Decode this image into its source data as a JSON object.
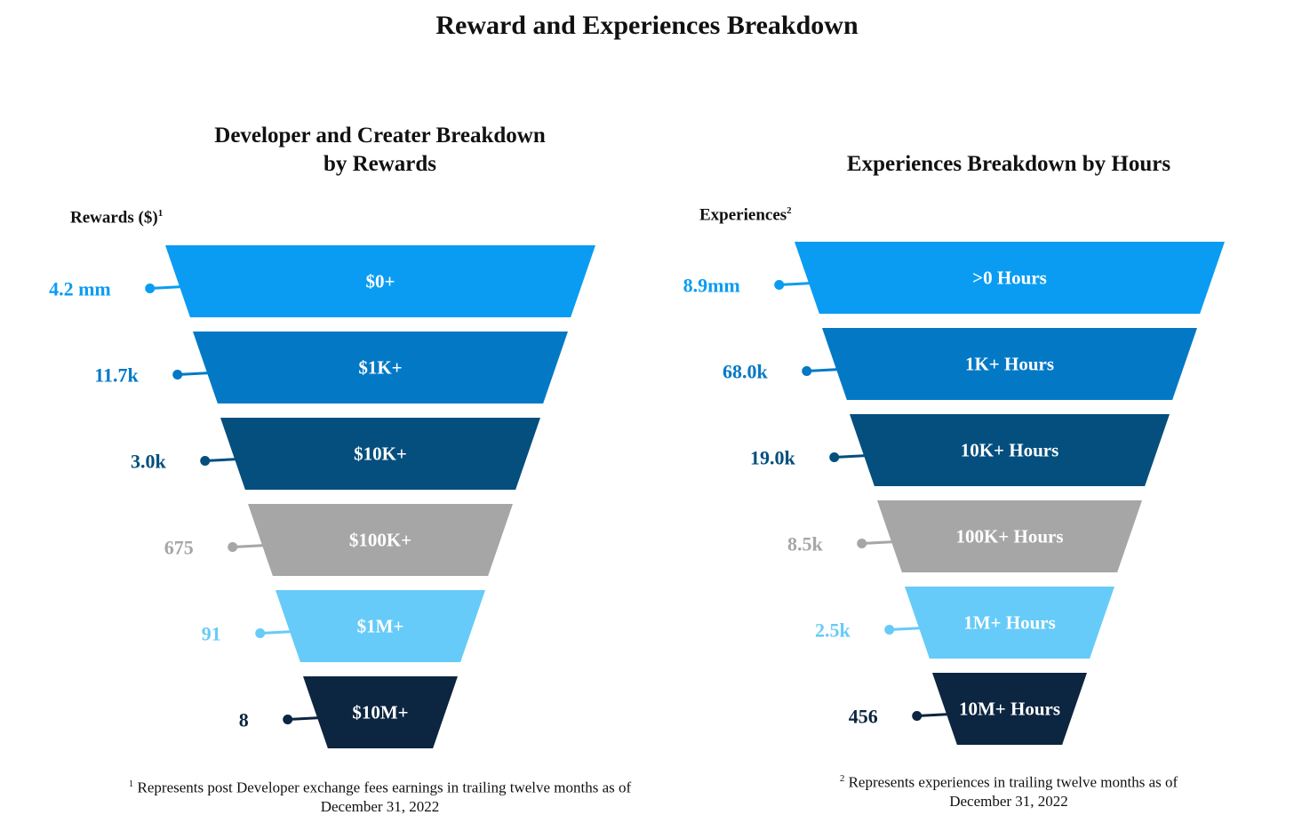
{
  "title": "Reward and Experiences Breakdown",
  "chart_data": [
    {
      "type": "funnel",
      "title_line1": "Developer and Creater Breakdown",
      "title_line2": "by Rewards",
      "ylabel": "Rewards ($)",
      "ylabel_note": "1",
      "stages": [
        {
          "label": "$0+",
          "value": 4200000,
          "value_label": "4.2 mm",
          "color": "#0a9cf2"
        },
        {
          "label": "$1K+",
          "value": 11700,
          "value_label": "11.7k",
          "color": "#0379c6"
        },
        {
          "label": "$10K+",
          "value": 3000,
          "value_label": "3.0k",
          "color": "#044f7e"
        },
        {
          "label": "$100K+",
          "value": 675,
          "value_label": "675",
          "color": "#a6a6a6"
        },
        {
          "label": "$1M+",
          "value": 91,
          "value_label": "91",
          "color": "#66cbf8"
        },
        {
          "label": "$10M+",
          "value": 8,
          "value_label": "8",
          "color": "#0c2540"
        }
      ],
      "footnote_mark": "1",
      "footnote_line1": "Represents post Developer exchange fees earnings in trailing twelve months as of",
      "footnote_line2": "December 31, 2022"
    },
    {
      "type": "funnel",
      "title_line1": "",
      "title_line2": "Experiences Breakdown by Hours",
      "ylabel": "Experiences",
      "ylabel_note": "2",
      "stages": [
        {
          "label": ">0 Hours",
          "value": 8900000,
          "value_label": "8.9mm",
          "color": "#0a9cf2"
        },
        {
          "label": "1K+ Hours",
          "value": 68000,
          "value_label": "68.0k",
          "color": "#0379c6"
        },
        {
          "label": "10K+ Hours",
          "value": 19000,
          "value_label": "19.0k",
          "color": "#044f7e"
        },
        {
          "label": "100K+  Hours",
          "value": 8500,
          "value_label": "8.5k",
          "color": "#a6a6a6"
        },
        {
          "label": "1M+ Hours",
          "value": 2500,
          "value_label": "2.5k",
          "color": "#66cbf8"
        },
        {
          "label": "10M+ Hours",
          "value": 456,
          "value_label": "456",
          "color": "#0c2540"
        }
      ],
      "footnote_mark": "2",
      "footnote_line1": "Represents experiences in trailing twelve months as of",
      "footnote_line2": "December 31, 2022"
    }
  ]
}
